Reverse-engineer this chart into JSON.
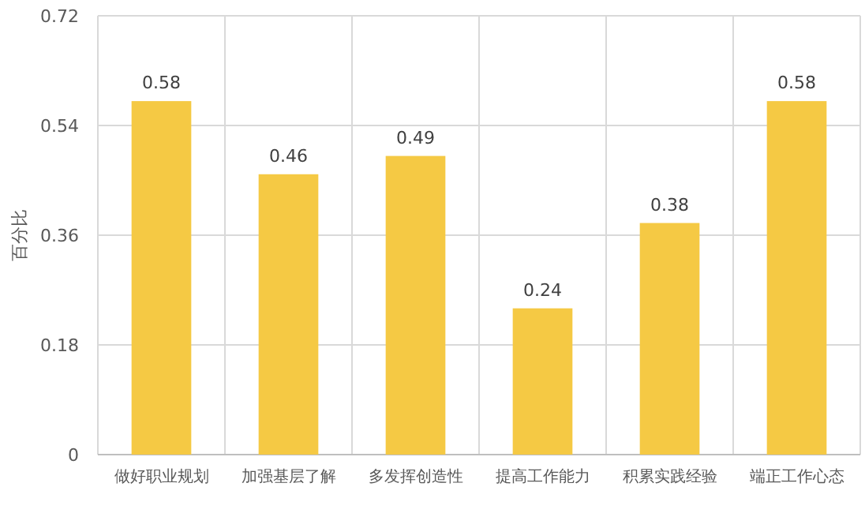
{
  "chart_data": {
    "type": "bar",
    "ylabel": "百分比",
    "categories": [
      "做好职业规划",
      "加强基层了解",
      "多发挥创造性",
      "提高工作能力",
      "积累实践经验",
      "端正工作心态"
    ],
    "values": [
      0.58,
      0.46,
      0.49,
      0.24,
      0.38,
      0.58
    ],
    "color": "#f5c944",
    "ylim": [
      0,
      0.72
    ],
    "yticks": [
      0,
      0.18,
      0.36,
      0.54,
      0.72
    ],
    "grid": true,
    "data_labels": true
  }
}
